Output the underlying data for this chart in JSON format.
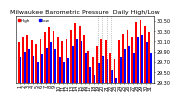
{
  "title": "Milwaukee Barometric Pressure  Daily High/Low",
  "days": [
    1,
    2,
    3,
    4,
    5,
    6,
    7,
    8,
    9,
    10,
    11,
    12,
    13,
    14,
    15,
    16,
    17,
    18,
    19,
    20,
    21,
    22,
    23,
    24,
    25,
    26,
    27,
    28,
    29,
    30,
    31
  ],
  "highs": [
    30.08,
    30.18,
    30.22,
    30.12,
    30.05,
    30.15,
    30.28,
    30.38,
    30.3,
    30.18,
    30.1,
    30.14,
    30.32,
    30.45,
    30.4,
    30.22,
    29.92,
    29.8,
    30.02,
    30.15,
    30.12,
    29.88,
    29.75,
    30.12,
    30.25,
    30.32,
    30.18,
    30.48,
    30.52,
    30.4,
    30.28
  ],
  "lows": [
    29.8,
    29.9,
    29.95,
    29.82,
    29.7,
    29.85,
    29.98,
    30.08,
    29.95,
    29.8,
    29.7,
    29.78,
    30.02,
    30.15,
    30.1,
    29.88,
    29.6,
    29.45,
    29.68,
    29.82,
    29.75,
    29.55,
    29.4,
    29.8,
    29.95,
    30.02,
    29.88,
    30.18,
    30.22,
    30.08,
    29.88
  ],
  "high_color": "#ff0000",
  "low_color": "#0000ff",
  "bg_color": "#ffffff",
  "ylim_min": 29.3,
  "ylim_max": 30.6,
  "yticks": [
    29.3,
    29.5,
    29.7,
    29.9,
    30.1,
    30.3,
    30.5
  ],
  "dashed_line_groups": [
    [
      19,
      20,
      21,
      22
    ]
  ],
  "title_fontsize": 4.5,
  "tick_fontsize": 3.5,
  "bar_width": 0.42
}
